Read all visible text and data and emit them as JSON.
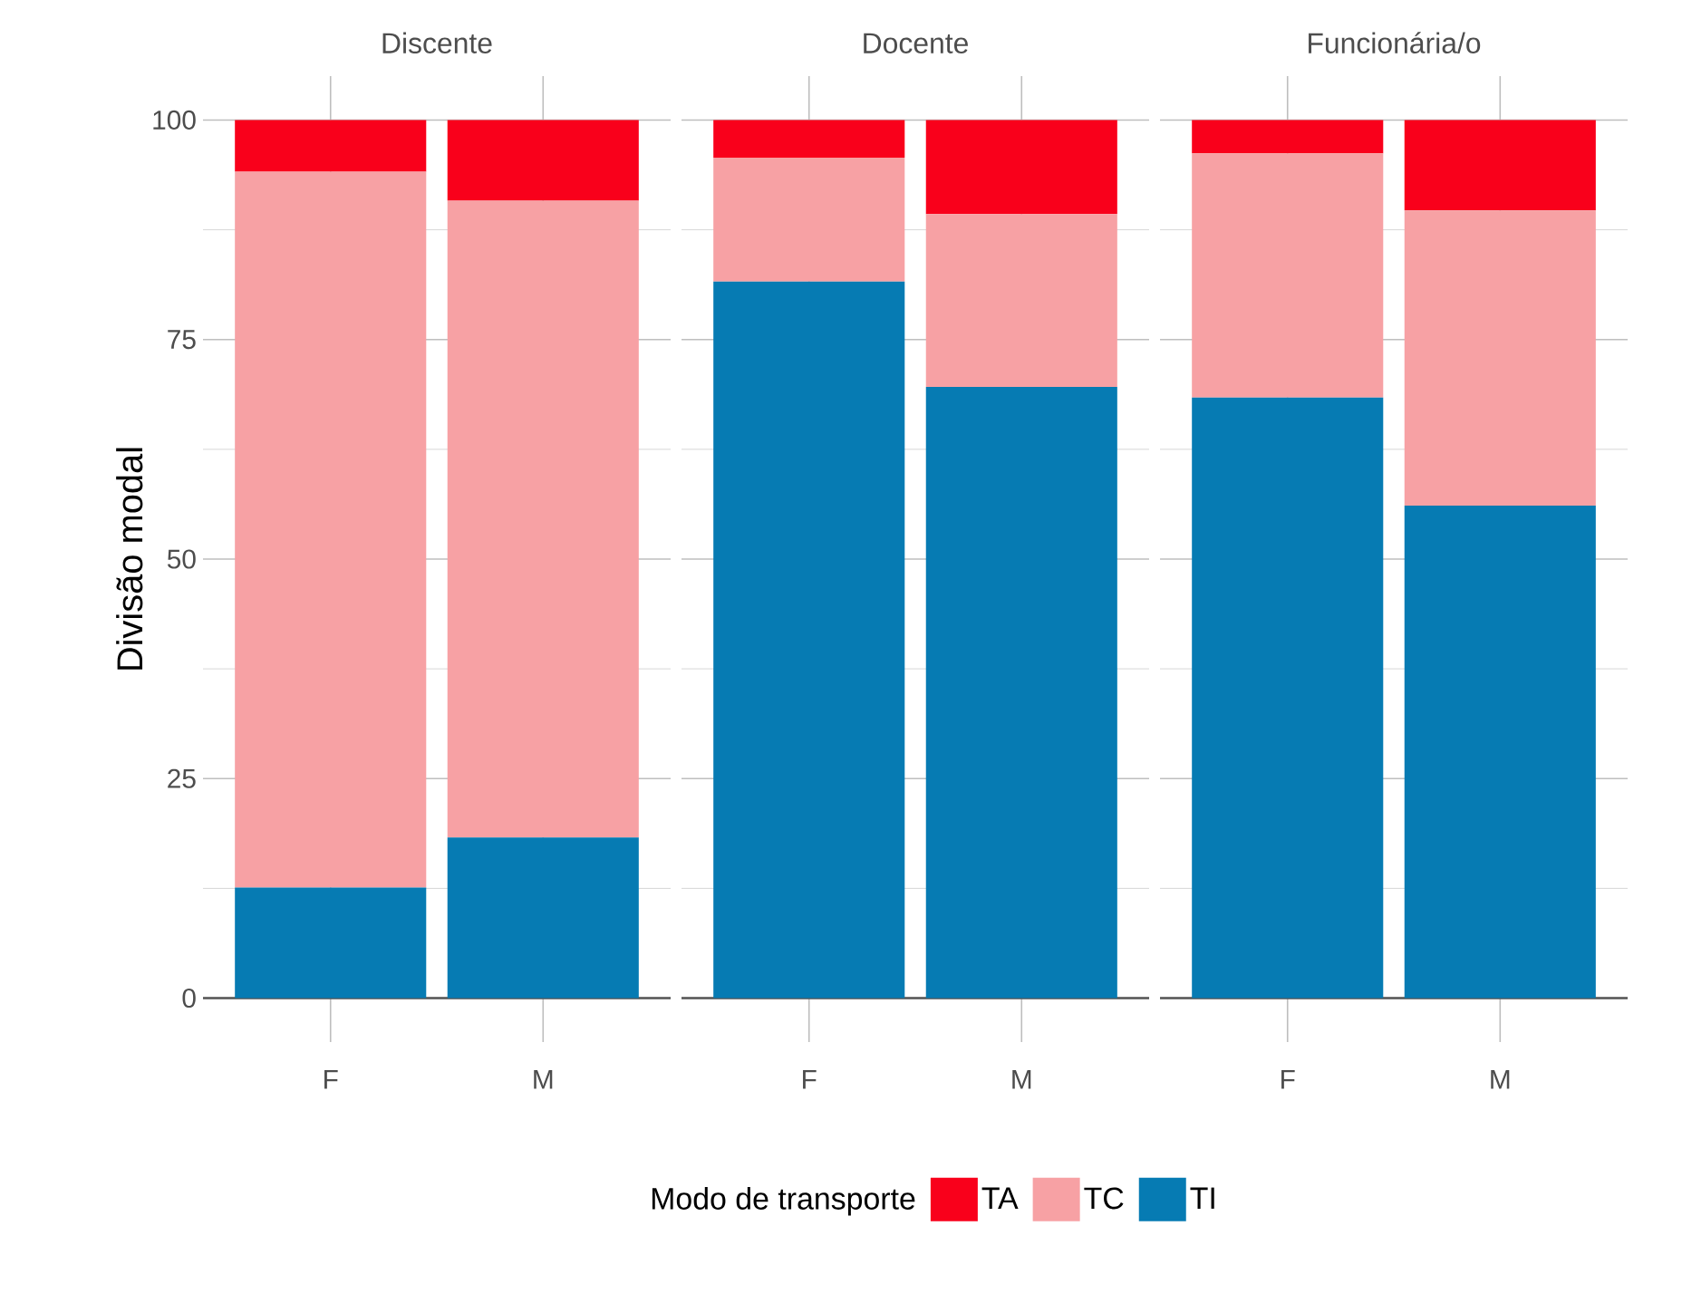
{
  "chart_data": [
    {
      "type": "bar",
      "title": "Discente",
      "ylabel": "Divisão modal",
      "categories": [
        "F",
        "M"
      ],
      "stacked": true,
      "series": [
        {
          "name": "TI",
          "color": "#067bb3",
          "values": [
            12.6,
            18.3
          ]
        },
        {
          "name": "TC",
          "color": "#f7a1a4",
          "values": [
            81.5,
            72.5
          ]
        },
        {
          "name": "TA",
          "color": "#f9001b",
          "values": [
            5.9,
            9.2
          ]
        }
      ],
      "ylim": [
        -5,
        105
      ],
      "yticks": [
        0,
        25,
        50,
        75,
        100
      ],
      "grid": true,
      "legend": "bottom",
      "legend_title": "Modo de transporte",
      "ref_lines": [
        {
          "axis": "y",
          "value": 0,
          "color": "#555555"
        }
      ]
    },
    {
      "type": "bar",
      "title": "Docente",
      "categories": [
        "F",
        "M"
      ],
      "stacked": true,
      "series": [
        {
          "color": "#067bb3",
          "values": [
            81.6,
            69.6
          ]
        },
        {
          "color": "#f7a1a4",
          "values": [
            14.1,
            19.7
          ]
        },
        {
          "color": "#f9001b",
          "values": [
            4.3,
            10.7
          ]
        }
      ],
      "ylim": [
        -5,
        105
      ],
      "yticks": [
        0,
        25,
        50,
        75,
        100
      ],
      "grid": true,
      "tick_labels": "x",
      "ref_lines": [
        {
          "axis": "y",
          "value": 0,
          "color": "#555555"
        }
      ]
    },
    {
      "type": "bar",
      "title": "Funcionária/o",
      "categories": [
        "F",
        "M"
      ],
      "stacked": true,
      "series": [
        {
          "color": "#067bb3",
          "values": [
            68.4,
            56.1
          ]
        },
        {
          "color": "#f7a1a4",
          "values": [
            27.8,
            33.6
          ]
        },
        {
          "color": "#f9001b",
          "values": [
            3.8,
            10.3
          ]
        }
      ],
      "ylim": [
        -5,
        105
      ],
      "yticks": [
        0,
        25,
        50,
        75,
        100
      ],
      "grid": true,
      "tick_labels": "x",
      "ref_lines": [
        {
          "axis": "y",
          "value": 0,
          "color": "#555555"
        }
      ]
    }
  ]
}
